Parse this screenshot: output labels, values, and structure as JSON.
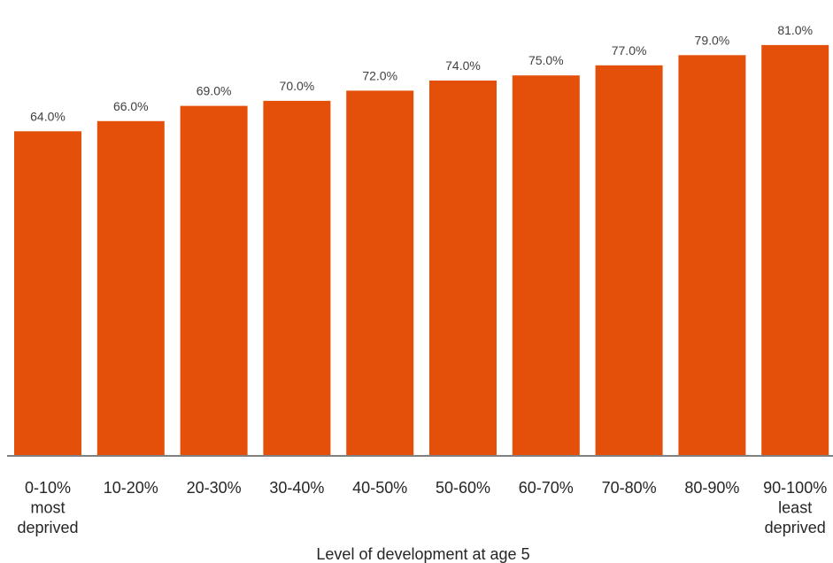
{
  "chart_data": {
    "type": "bar",
    "categories": [
      [
        "0-10%",
        "most",
        "deprived"
      ],
      [
        "10-20%"
      ],
      [
        "20-30%"
      ],
      [
        "30-40%"
      ],
      [
        "40-50%"
      ],
      [
        "50-60%"
      ],
      [
        "60-70%"
      ],
      [
        "70-80%"
      ],
      [
        "80-90%"
      ],
      [
        "90-100%",
        "least",
        "deprived"
      ]
    ],
    "values": [
      64.0,
      66.0,
      69.0,
      70.0,
      72.0,
      74.0,
      75.0,
      77.0,
      79.0,
      81.0
    ],
    "data_labels": [
      "64.0%",
      "66.0%",
      "69.0%",
      "70.0%",
      "72.0%",
      "74.0%",
      "75.0%",
      "77.0%",
      "79.0%",
      "81.0%"
    ],
    "title": "",
    "xlabel": "Level of development at age 5",
    "ylabel": "",
    "ylim": [
      0,
      86
    ],
    "grid": false,
    "legend": "none",
    "colors": {
      "bar": "#e4500a",
      "axis": "#808080",
      "label_text": "#404040",
      "tick_text": "#262626"
    }
  }
}
